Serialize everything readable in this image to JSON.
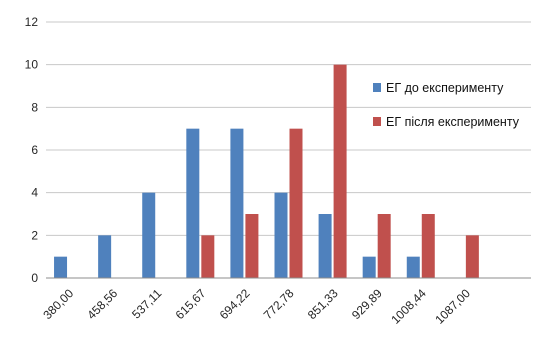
{
  "chart_data": {
    "type": "bar",
    "categories": [
      "380,00",
      "458,56",
      "537,11",
      "615,67",
      "694,22",
      "772,78",
      "851,33",
      "929,89",
      "1008,44",
      "1087,00",
      ""
    ],
    "series": [
      {
        "name": "ЕГ до експерименту",
        "values": [
          1,
          2,
          4,
          7,
          7,
          4,
          3,
          1,
          1,
          0,
          0
        ],
        "color": "#4F81BD"
      },
      {
        "name": "ЕГ після експерименту",
        "values": [
          0,
          0,
          0,
          2,
          3,
          7,
          10,
          3,
          3,
          2,
          0
        ],
        "color": "#C0504D"
      }
    ],
    "y_ticks": [
      "0",
      "2",
      "4",
      "6",
      "8",
      "10",
      "12"
    ],
    "ylim": [
      0,
      12
    ],
    "grid": true,
    "legend_position": "right"
  }
}
